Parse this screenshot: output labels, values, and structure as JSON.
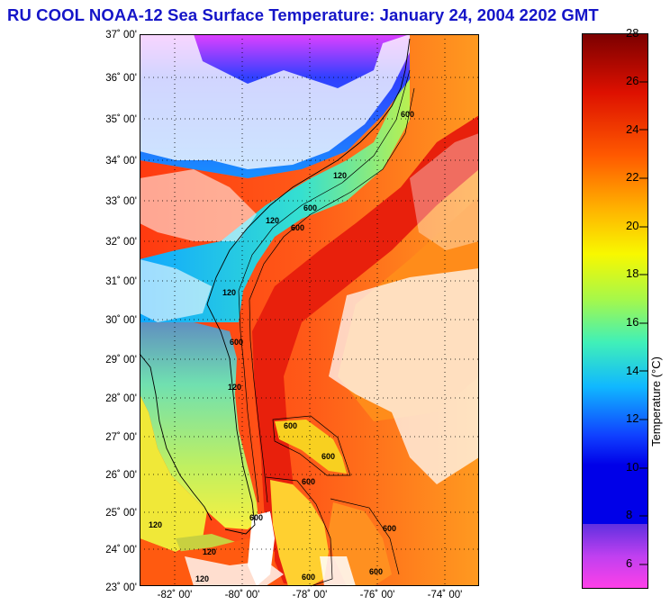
{
  "title": "RU COOL  NOAA-12  Sea Surface Temperature:  January 24, 2004 2202 GMT",
  "latitude_labels": [
    "37˚ 00'",
    "36˚ 00'",
    "35˚ 00'",
    "34˚ 00'",
    "33˚ 00'",
    "32˚ 00'",
    "31˚ 00'",
    "30˚ 00'",
    "29˚ 00'",
    "28˚ 00'",
    "27˚ 00'",
    "26˚ 00'",
    "25˚ 00'",
    "24˚ 00'",
    "23˚ 00'"
  ],
  "longitude_labels": [
    "-82˚ 00'",
    "-80˚ 00'",
    "-78˚ 00'",
    "-76˚ 00'",
    "-74˚ 00'"
  ],
  "map_extent": {
    "lon_min": -83.2,
    "lon_max": -73.1,
    "lat_min": 23,
    "lat_max": 37
  },
  "contour_labels": [
    "600",
    "120",
    "600",
    "120",
    "600",
    "120",
    "600",
    "120",
    "600",
    "600",
    "600",
    "600",
    "120",
    "600",
    "120",
    "600",
    "120",
    "600"
  ],
  "colorbar": {
    "label": "Temperature (°C)",
    "min": 5,
    "max": 28,
    "ticks": [
      "6",
      "8",
      "10",
      "12",
      "14",
      "16",
      "18",
      "20",
      "22",
      "24",
      "26",
      "28"
    ]
  },
  "colors": {
    "title": "#1515c8",
    "land": "#ffffff",
    "cloud": "#ffffff"
  }
}
